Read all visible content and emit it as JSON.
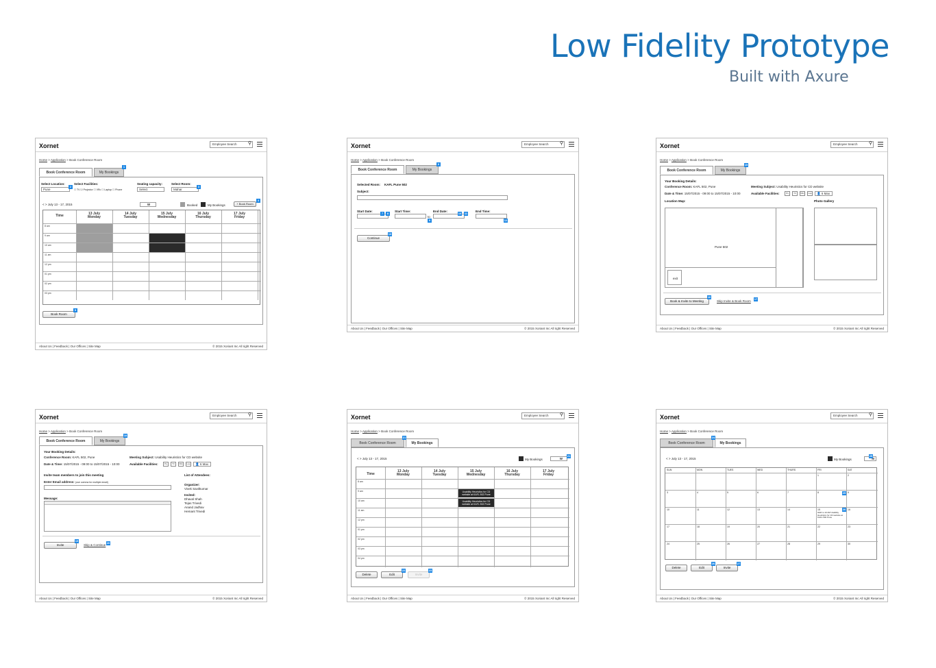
{
  "heading": {
    "title": "Low Fidelity Prototype",
    "subtitle": "Built with Axure"
  },
  "common": {
    "logo": "Xornet",
    "search_placeholder": "Employee Search",
    "breadcrumb": {
      "home": "Home",
      "sep1": " > ",
      "app": "Application",
      "sep2": " > ",
      "page": "Book Conference Room"
    },
    "tab_book": "Book Conference Room",
    "tab_mybookings": "My Bookings",
    "footer_links": "About Us  |  Feedback  |  Our Offices  |  Site Map",
    "footer_copy": "© 2015 Xoriant Inc All right Reserved"
  },
  "screen1": {
    "select_location_label": "Select Location:",
    "select_location_value": "Pune",
    "facilities_label": "Select Facilities:",
    "facilities": "☐ TV ☑ Projector ☐ VRc ☐ Laptop ☐ Phone",
    "seating_label": "Seating capacity:",
    "seating_value": "Select",
    "room_label": "Select Room:",
    "room_value": "Mahar",
    "date_range": "<  >  July 13 - 17, 2015",
    "view_w": "W",
    "legend_booked": "Booked",
    "legend_mine": "My Bookings",
    "book_room_top": "+ Book Room",
    "time_header": "Time",
    "days": [
      {
        "d": "13 July",
        "w": "Monday"
      },
      {
        "d": "14 July",
        "w": "Tuesday"
      },
      {
        "d": "15 July",
        "w": "Wednesday"
      },
      {
        "d": "16 July",
        "w": "Thursday"
      },
      {
        "d": "17 July",
        "w": "Friday"
      }
    ],
    "times": [
      "8 am",
      "9 am",
      "10 am",
      "11 am",
      "12 pm",
      "01 pm",
      "02 pm",
      "03 pm"
    ],
    "book_button": "Book Room",
    "badges": [
      "1",
      "2",
      "3",
      "4",
      "5"
    ]
  },
  "screen2": {
    "selected_room_label": "Selected Room:",
    "selected_room_value": "KAFL Pune 502",
    "subject_label": "Subject:",
    "start_date": "Start Date:",
    "start_time": "Start Time:",
    "end_date": "End Date:",
    "end_time": "End Time:",
    "to": "to",
    "continue": "Continue",
    "badges": [
      "6",
      "7",
      "8",
      "9",
      "10",
      "11",
      "12",
      "13",
      "14"
    ]
  },
  "screen3": {
    "details_label": "Your Booking Details:",
    "conf_room_label": "Conference Room:",
    "conf_room_value": "KAFL 502, Pune",
    "datetime_label": "Date & Time:",
    "datetime_value": "15/07/2015 - 09:00 to 15/07/2015 - 10:00",
    "subject_label": "Meeting Subject:",
    "subject_value": "Usability Heuristics for CD website",
    "facilities_label": "Available Facilities:",
    "fac_icons": [
      "Prj",
      "TV",
      "VRc",
      "Lap"
    ],
    "max": "6 Max",
    "location_map": "Location Map:",
    "photo_gallery": "Photo Gallery",
    "map_room": "Pune 502",
    "map_exit": "exit",
    "book_invite": "Book & Invite to Meeting",
    "skip": "Skip Invite & Book Room",
    "badges": [
      "15",
      "16",
      "17"
    ]
  },
  "screen4": {
    "details_label": "Your Booking Details:",
    "conf_room_label": "Conference Room:",
    "conf_room_value": "KAFL 502, Pune",
    "datetime_label": "Date & Time:",
    "datetime_value": "15/07/2015 - 09:00 to 15/07/2015 - 10:00",
    "subject_label": "Meeting Subject:",
    "subject_value": "Usability Heuristics for CD website",
    "facilities_label": "Available Facilities:",
    "fac_icons": [
      "Prj",
      "TV",
      "VRc",
      "Lap"
    ],
    "max": "6 Max",
    "invite_label": "Invite team members to join this meeting",
    "email_label": "Enter Email address:",
    "email_hint": "(use comma for multiple email)",
    "message_label": "Message:",
    "attendees_label": "List of Attendees:",
    "organizer_label": "Organizer:",
    "organizer": "Vivek Savitkumar",
    "invited_label": "Invited:",
    "invited": [
      "Dhaval Shah",
      "Tejas Trivedi",
      "Anand Jadhav",
      "Hemant Trivedi"
    ],
    "invite_btn": "Invite",
    "skip": "Skip & Continue",
    "badges": [
      "18",
      "19",
      "20"
    ]
  },
  "screen5": {
    "date_range": "<  >  July 13 - 17, 2015",
    "legend_mine": "My Bookings",
    "view_w": "W",
    "time_header": "Time",
    "days": [
      {
        "d": "13 July",
        "w": "Monday"
      },
      {
        "d": "14 July",
        "w": "Tuesday"
      },
      {
        "d": "15 July",
        "w": "Wednesday"
      },
      {
        "d": "16 July",
        "w": "Thursday"
      },
      {
        "d": "17 July",
        "w": "Friday"
      }
    ],
    "times": [
      "8 am",
      "9 am",
      "10 am",
      "11 am",
      "12 pm",
      "01 pm",
      "02 pm",
      "03 pm",
      "04 pm"
    ],
    "event_text": "Usability Heuristics for CD website at KAFL 502 Pune",
    "delete": "Delete",
    "edit": "Edit",
    "invite": "Invite",
    "badges": [
      "21",
      "22",
      "23"
    ]
  },
  "screen6": {
    "date_range": "<  >  July 13 - 17, 2015",
    "legend_mine": "My Bookings",
    "view_m": "M",
    "weekdays": [
      "SUN",
      "MON",
      "TUES",
      "WED",
      "THURS",
      "FRI",
      "SAT"
    ],
    "weeks": [
      [
        "",
        "",
        "",
        "",
        "",
        "1",
        "2"
      ],
      [
        "3",
        "4",
        "5",
        "6",
        "7",
        "8",
        "9"
      ],
      [
        "10",
        "11",
        "12",
        "13",
        "14",
        "15",
        "16"
      ],
      [
        "17",
        "18",
        "19",
        "20",
        "21",
        "22",
        "23"
      ],
      [
        "24",
        "25",
        "26",
        "27",
        "28",
        "29",
        "30"
      ]
    ],
    "event_text": "9AM to 10 AM Usability Heuristics for CD website at KAFL 502 Pune",
    "delete": "Delete",
    "edit": "Edit",
    "invite": "Invite",
    "badges": [
      "24",
      "25",
      "26",
      "27"
    ]
  }
}
